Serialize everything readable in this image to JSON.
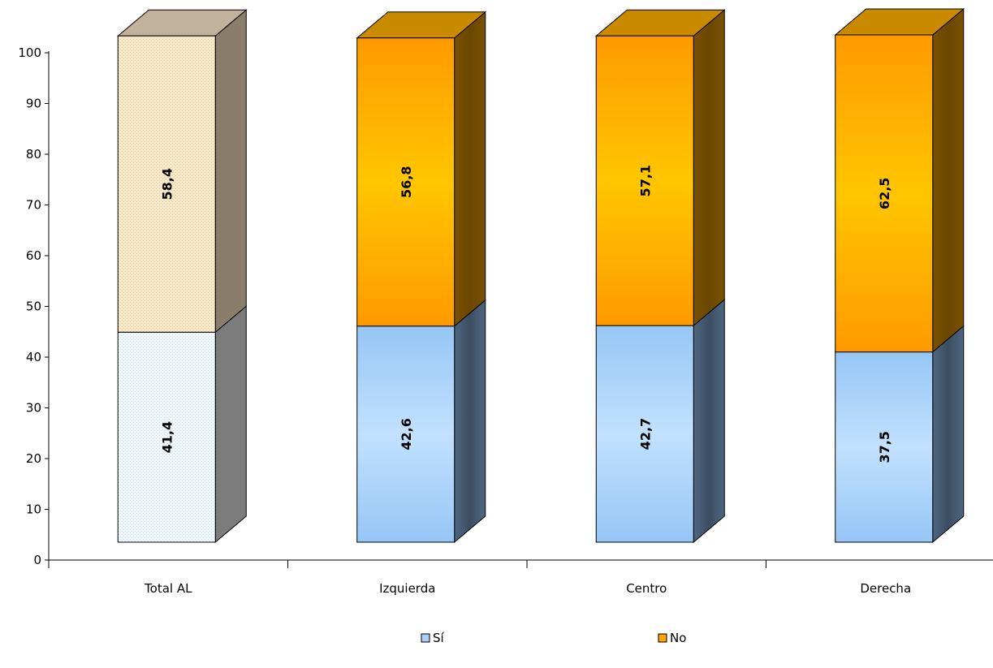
{
  "chart_data": {
    "type": "bar",
    "stacked": true,
    "three_d": true,
    "categories": [
      "Total AL",
      "Izquierda",
      "Centro",
      "Derecha"
    ],
    "series": [
      {
        "name": "Sí",
        "values": [
          41.4,
          42.6,
          42.7,
          37.5
        ],
        "labels": [
          "41,4",
          "42,6",
          "42,7",
          "37,5"
        ]
      },
      {
        "name": "No",
        "values": [
          58.4,
          56.8,
          57.1,
          62.5
        ],
        "labels": [
          "58,4",
          "56,8",
          "57,1",
          "62,5"
        ]
      }
    ],
    "y_ticks": [
      0,
      10,
      20,
      30,
      40,
      50,
      60,
      70,
      80,
      90,
      100
    ],
    "ylim": [
      0,
      100
    ],
    "grid": false,
    "legend_position": "bottom",
    "colors": {
      "si": "#a8d0fa",
      "no": "#ffa500",
      "total_si": "#eef5fb",
      "total_no": "#f4e6c4"
    }
  }
}
